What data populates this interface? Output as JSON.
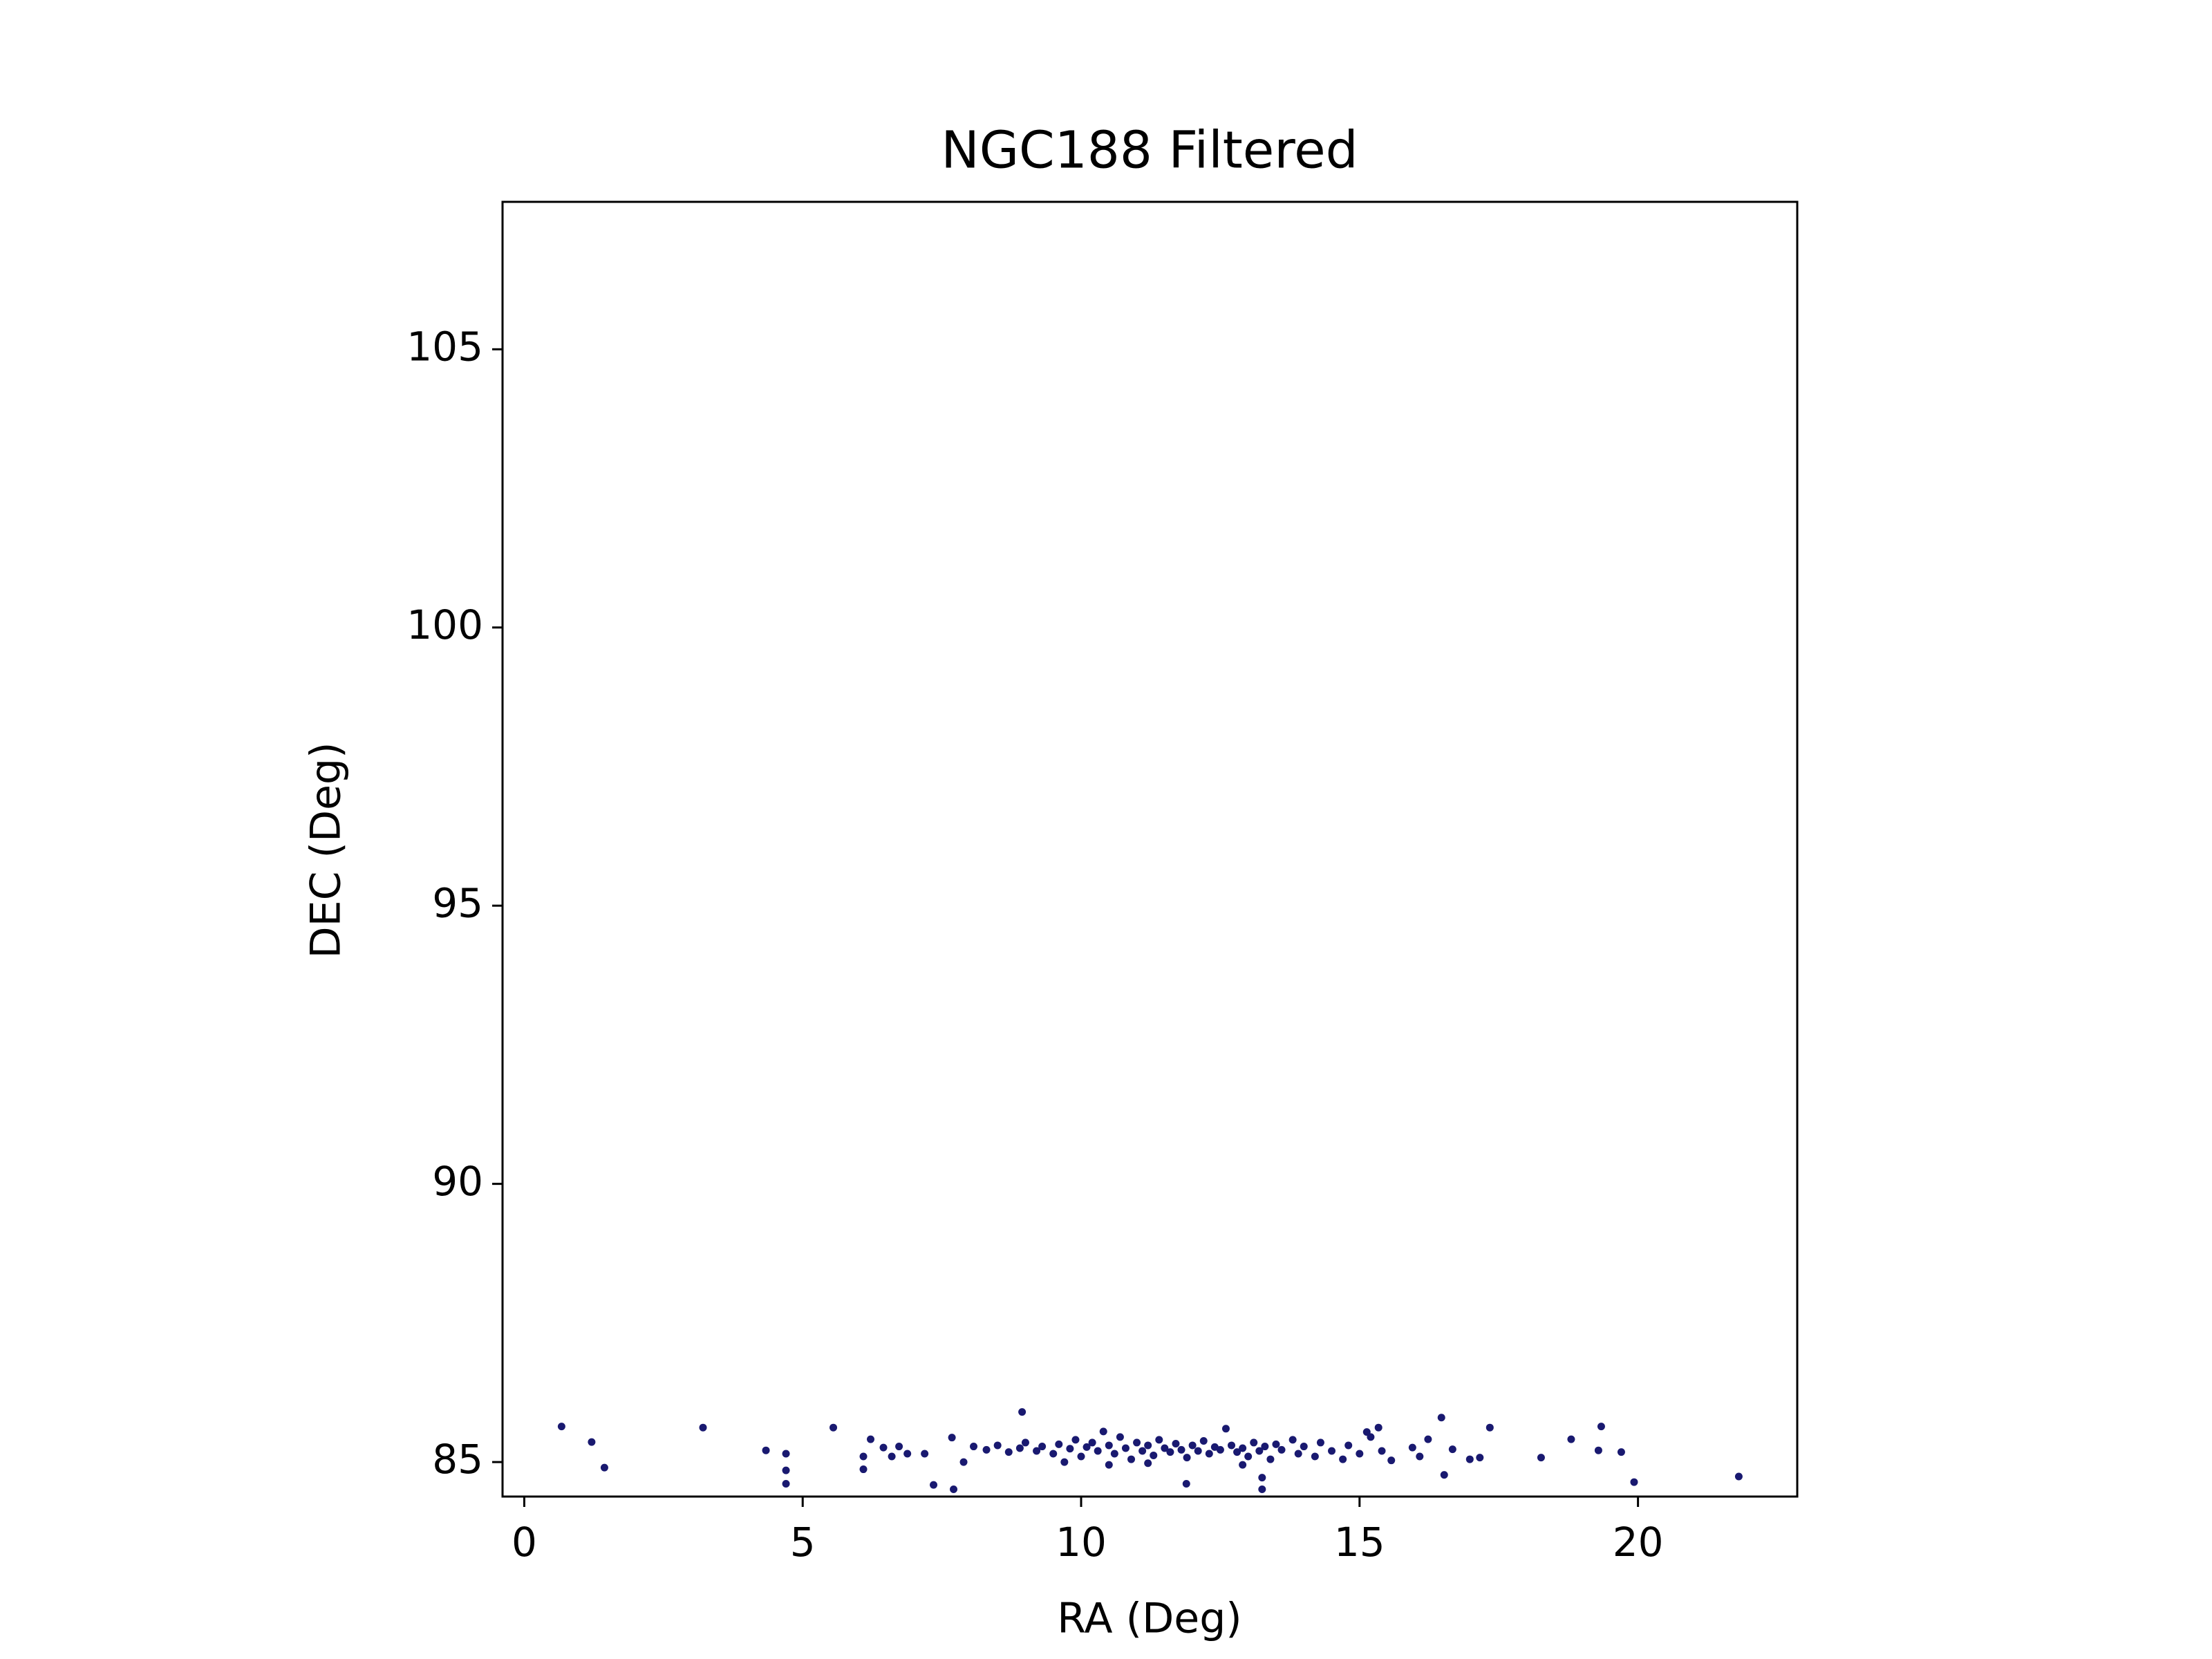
{
  "chart_data": {
    "type": "scatter",
    "title": "NGC188 Filtered",
    "x_label": "RA (Deg)",
    "y_label": "DEC (Deg)",
    "color": "#191970",
    "xlim": [
      -0.39,
      22.86
    ],
    "ylim": [
      84.38,
      107.65
    ],
    "xticks": [
      0,
      5,
      10,
      15,
      20
    ],
    "yticks": [
      85,
      90,
      95,
      100,
      105
    ],
    "x": [
      0.67,
      1.21,
      1.44,
      3.21,
      4.34,
      4.7,
      4.7,
      4.7,
      5.55,
      6.09,
      6.09,
      6.22,
      6.45,
      6.6,
      6.73,
      6.88,
      7.19,
      7.35,
      7.71,
      7.68,
      7.89,
      8.07,
      8.94,
      16.47,
      16.52,
      16.67,
      16.98,
      17.16,
      17.34,
      18.26,
      18.8,
      19.34,
      19.29,
      19.7,
      19.93,
      21.81,
      11.89,
      13.25,
      13.25,
      15.95,
      16.08,
      15.34,
      15.13,
      15.57,
      16.23,
      8.3,
      8.5,
      8.7,
      8.9,
      9.0,
      9.2,
      9.3,
      9.5,
      9.6,
      9.8,
      9.9,
      10.0,
      10.1,
      10.2,
      10.3,
      10.4,
      10.5,
      10.6,
      10.7,
      10.8,
      10.9,
      11.0,
      11.1,
      11.2,
      11.3,
      11.4,
      11.5,
      11.6,
      11.7,
      11.8,
      11.9,
      12.0,
      12.1,
      12.2,
      12.3,
      12.4,
      12.5,
      12.6,
      12.7,
      12.8,
      12.9,
      13.0,
      13.1,
      13.2,
      13.3,
      13.4,
      13.5,
      13.6,
      13.8,
      13.9,
      14.0,
      14.2,
      14.3,
      14.5,
      14.7,
      14.8,
      15.0,
      15.2,
      15.4,
      10.5,
      11.2,
      9.7,
      12.9
    ],
    "y": [
      85.64,
      85.36,
      84.9,
      85.62,
      85.21,
      85.15,
      84.85,
      84.61,
      85.62,
      85.1,
      84.87,
      85.41,
      85.26,
      85.1,
      85.28,
      85.15,
      85.15,
      84.59,
      84.51,
      85.44,
      85.0,
      85.28,
      85.9,
      85.8,
      84.77,
      85.23,
      85.05,
      85.08,
      85.62,
      85.08,
      85.41,
      85.64,
      85.21,
      85.18,
      84.64,
      84.74,
      84.61,
      84.51,
      84.72,
      85.26,
      85.1,
      85.62,
      85.54,
      85.03,
      85.41,
      85.22,
      85.3,
      85.18,
      85.25,
      85.35,
      85.2,
      85.28,
      85.15,
      85.32,
      85.24,
      85.4,
      85.1,
      85.27,
      85.35,
      85.2,
      85.55,
      85.3,
      85.15,
      85.45,
      85.25,
      85.05,
      85.35,
      85.2,
      85.3,
      85.12,
      85.4,
      85.25,
      85.18,
      85.33,
      85.22,
      85.08,
      85.3,
      85.2,
      85.38,
      85.15,
      85.27,
      85.22,
      85.6,
      85.3,
      85.18,
      85.25,
      85.1,
      85.35,
      85.2,
      85.28,
      85.05,
      85.32,
      85.22,
      85.4,
      85.15,
      85.28,
      85.1,
      85.35,
      85.2,
      85.05,
      85.3,
      85.15,
      85.45,
      85.2,
      84.95,
      84.98,
      85.0,
      84.95
    ]
  }
}
